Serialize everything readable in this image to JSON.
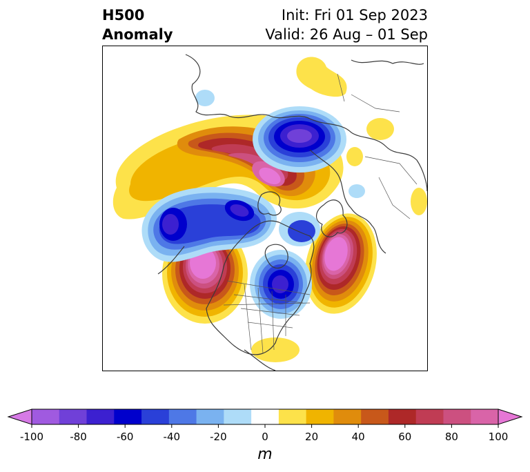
{
  "header": {
    "title_line1": "H500",
    "title_line2": "Anomaly",
    "init": "Init: Fri 01 Sep 2023",
    "valid": "Valid: 26 Aug – 01 Sep"
  },
  "colorbar": {
    "unit": "m",
    "ticks": [
      "-100",
      "-80",
      "-60",
      "-40",
      "-20",
      "0",
      "20",
      "40",
      "60",
      "80",
      "100"
    ],
    "tick_values": [
      -100,
      -80,
      -60,
      -40,
      -20,
      0,
      20,
      40,
      60,
      80,
      100
    ],
    "extend": "both",
    "colors": [
      "#d67ae6",
      "#a05ae0",
      "#7040d8",
      "#3c20d0",
      "#0000cc",
      "#2a40d8",
      "#4e78e6",
      "#7ab2f0",
      "#aedcf8",
      "#ffffff",
      "#fde24a",
      "#f0b400",
      "#e08c0c",
      "#c8581a",
      "#ae2828",
      "#c03c54",
      "#cc5080",
      "#d964a8",
      "#e677d6"
    ]
  },
  "map": {
    "projection": "north-polar-stereographic",
    "features": [
      "coastlines",
      "country-borders",
      "us-state-borders"
    ]
  }
}
